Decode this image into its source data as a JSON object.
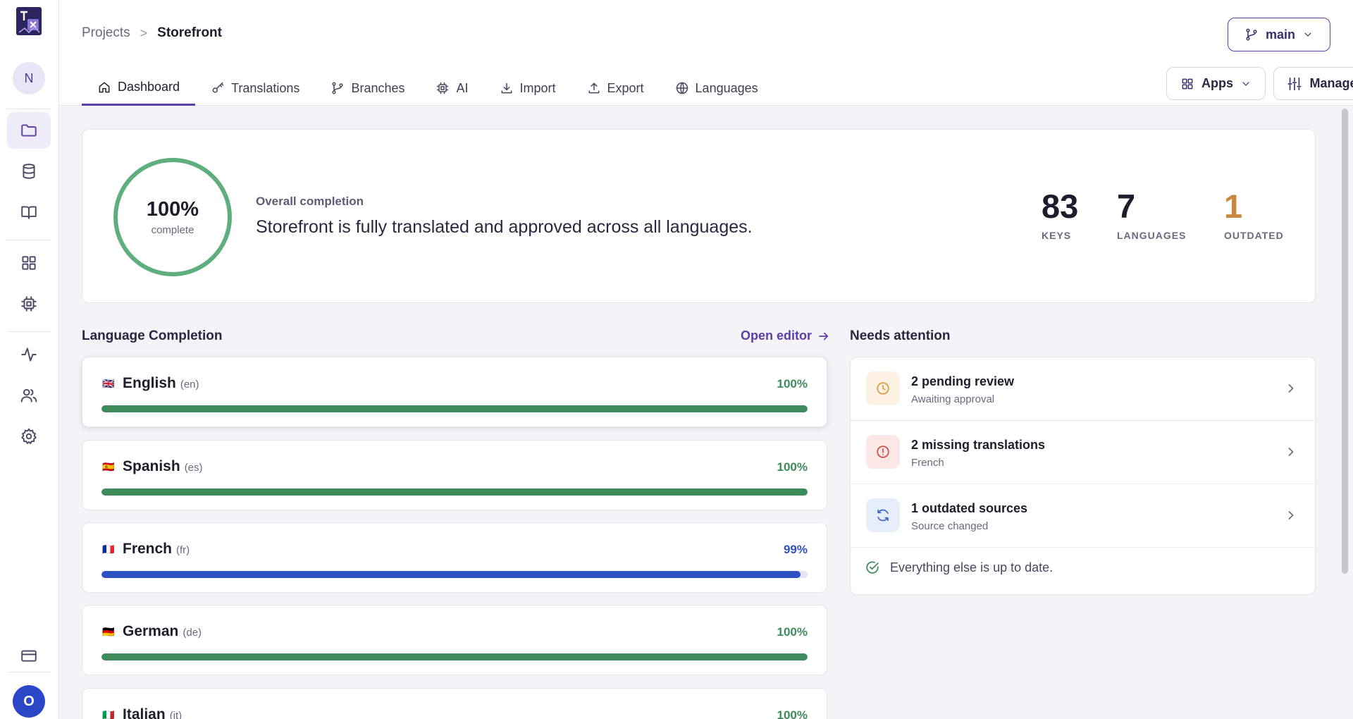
{
  "app": {
    "logo_icon": "tolgee-translate-logo-icon",
    "user_initial": "N",
    "account_initial": "O"
  },
  "rail": {
    "items": [
      {
        "name": "projects",
        "icon": "folder-icon",
        "active": true
      },
      {
        "name": "database",
        "icon": "database-icon"
      },
      {
        "name": "docs",
        "icon": "book-icon"
      },
      {
        "name": "apps",
        "icon": "grid-icon"
      },
      {
        "name": "ai",
        "icon": "chip-icon"
      },
      {
        "name": "activity",
        "icon": "activity-icon"
      },
      {
        "name": "members",
        "icon": "users-icon"
      },
      {
        "name": "settings",
        "icon": "gear-icon"
      },
      {
        "name": "billing",
        "icon": "credit-card-icon"
      }
    ]
  },
  "breadcrumb": {
    "parent": "Projects",
    "separator": ">",
    "current": "Storefront"
  },
  "branch": {
    "label": "main",
    "icon": "git-branch-icon"
  },
  "tabs": [
    {
      "label": "Dashboard",
      "icon": "home-icon",
      "active": true
    },
    {
      "label": "Translations",
      "icon": "key-icon"
    },
    {
      "label": "Branches",
      "icon": "git-branch-icon"
    },
    {
      "label": "AI",
      "icon": "chip-icon"
    },
    {
      "label": "Import",
      "icon": "download-icon"
    },
    {
      "label": "Export",
      "icon": "upload-icon"
    },
    {
      "label": "Languages",
      "icon": "globe-icon"
    }
  ],
  "header_buttons": {
    "apps": "Apps",
    "manage": "Manage"
  },
  "summary": {
    "percent": "100%",
    "percent_value": 100,
    "percent_label": "complete",
    "overall_label": "Overall completion",
    "overall_text": "Storefront is fully translated and approved across all languages.",
    "stats": [
      {
        "value": "83",
        "label": "KEYS"
      },
      {
        "value": "7",
        "label": "LANGUAGES"
      },
      {
        "value": "1",
        "label": "OUTDATED"
      }
    ],
    "colors": {
      "ring": "#5fae7d",
      "outdated": "#c9873f"
    }
  },
  "language_section": {
    "title": "Language Completion",
    "open_editor": "Open editor"
  },
  "languages": [
    {
      "flag": "🇬🇧",
      "name": "English",
      "code": "(en)",
      "percent": "100%",
      "progress": 1.0,
      "color": "#3d8a5b"
    },
    {
      "flag": "🇪🇸",
      "name": "Spanish",
      "code": "(es)",
      "percent": "100%",
      "progress": 1.0,
      "color": "#3d8a5b"
    },
    {
      "flag": "🇫🇷",
      "name": "French",
      "code": "(fr)",
      "percent": "99%",
      "progress": 0.99,
      "color": "#2d50c2"
    },
    {
      "flag": "🇩🇪",
      "name": "German",
      "code": "(de)",
      "percent": "100%",
      "progress": 1.0,
      "color": "#3d8a5b"
    },
    {
      "flag": "🇮🇹",
      "name": "Italian",
      "code": "(it)",
      "percent": "100%",
      "progress": 1.0,
      "color": "#3d8a5b"
    }
  ],
  "attention": {
    "title": "Needs attention",
    "items": [
      {
        "title": "2 pending review",
        "subtitle": "Awaiting approval",
        "icon": "clock-icon",
        "color": "#d9953f",
        "bg": "#fdf1e3"
      },
      {
        "title": "2 missing translations",
        "subtitle": "French",
        "icon": "alert-circle-icon",
        "color": "#c9483f",
        "bg": "#fbe7e5"
      },
      {
        "title": "1 outdated sources",
        "subtitle": "Source changed",
        "icon": "refresh-icon",
        "color": "#3a63c9",
        "bg": "#e6edfb"
      }
    ],
    "footer": "Everything else is up to date."
  }
}
